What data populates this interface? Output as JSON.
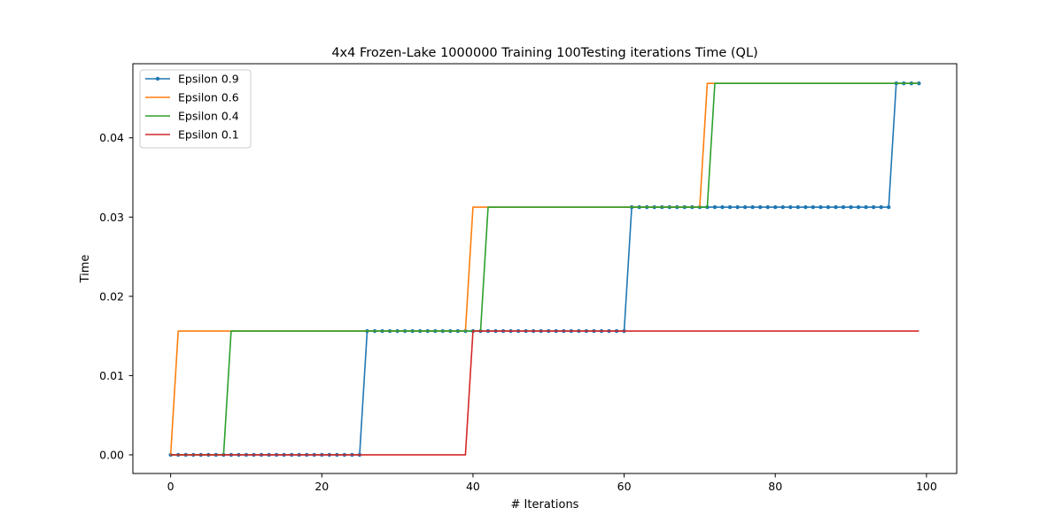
{
  "chart_data": {
    "type": "line",
    "title": "4x4 Frozen-Lake 1000000 Training 100Testing iterations  Time (QL)",
    "xlabel": "# Iterations",
    "ylabel": "Time",
    "xlim": [
      -5,
      104
    ],
    "ylim": [
      -0.00235,
      0.04935
    ],
    "xticks": [
      0,
      20,
      40,
      60,
      80,
      100
    ],
    "xtick_labels": [
      "0",
      "20",
      "40",
      "60",
      "80",
      "100"
    ],
    "yticks": [
      0.0,
      0.01,
      0.02,
      0.03,
      0.04
    ],
    "ytick_labels": [
      "0.00",
      "0.01",
      "0.02",
      "0.03",
      "0.04"
    ],
    "grid": false,
    "legend_position": "upper-left",
    "series": [
      {
        "name": "Epsilon 0.9",
        "color": "#1f77b4",
        "marker": "point",
        "steps": [
          [
            0,
            0.0
          ],
          [
            26,
            0.015625
          ],
          [
            61,
            0.03125
          ],
          [
            96,
            0.046875
          ]
        ],
        "x_end": 99
      },
      {
        "name": "Epsilon 0.6",
        "color": "#ff7f0e",
        "marker": "none",
        "steps": [
          [
            0,
            0.0
          ],
          [
            1,
            0.015625
          ],
          [
            40,
            0.03125
          ],
          [
            71,
            0.046875
          ]
        ],
        "x_end": 99
      },
      {
        "name": "Epsilon 0.4",
        "color": "#2ca02c",
        "marker": "none",
        "steps": [
          [
            0,
            0.0
          ],
          [
            8,
            0.015625
          ],
          [
            42,
            0.03125
          ],
          [
            72,
            0.046875
          ]
        ],
        "x_end": 99
      },
      {
        "name": "Epsilon 0.1",
        "color": "#d62728",
        "marker": "none",
        "steps": [
          [
            0,
            0.0
          ],
          [
            40,
            0.015625
          ]
        ],
        "x_end": 99
      }
    ]
  }
}
